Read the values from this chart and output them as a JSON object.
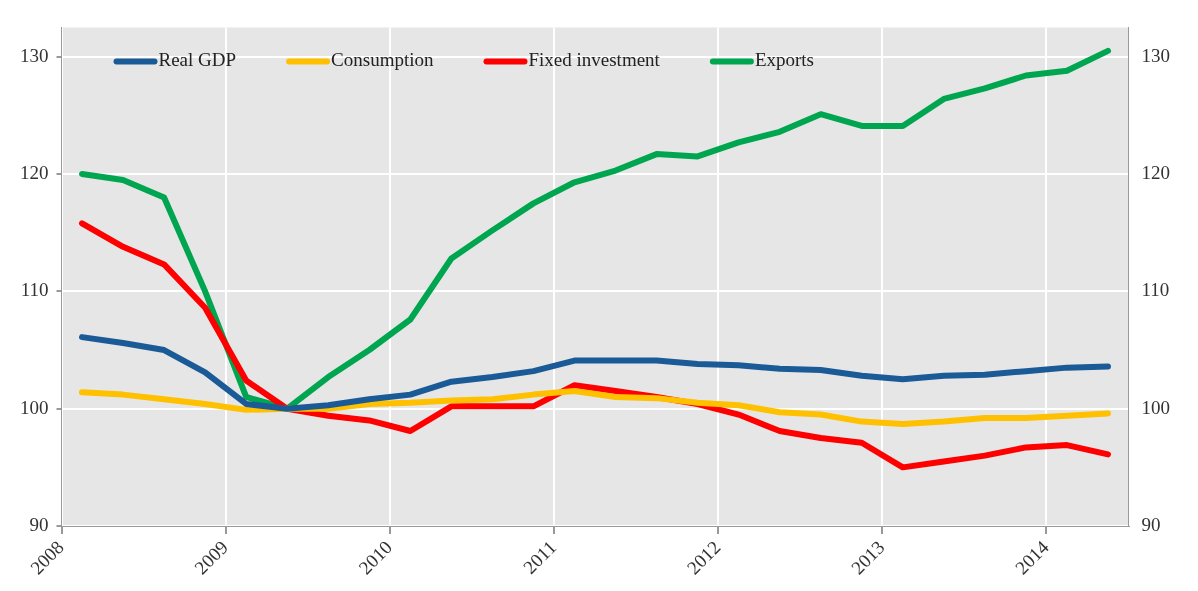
{
  "chart_data": {
    "type": "line",
    "x": [
      2008.125,
      2008.375,
      2008.625,
      2008.875,
      2009.125,
      2009.375,
      2009.625,
      2009.875,
      2010.125,
      2010.375,
      2010.625,
      2010.875,
      2011.125,
      2011.375,
      2011.625,
      2011.875,
      2012.125,
      2012.375,
      2012.625,
      2012.875,
      2013.125,
      2013.375,
      2013.625,
      2013.875,
      2014.125,
      2014.375
    ],
    "series": [
      {
        "name": "Real GDP",
        "color": "#1a5a96",
        "values": [
          106.1,
          105.6,
          105.0,
          103.1,
          100.4,
          100.0,
          100.3,
          100.8,
          101.2,
          102.3,
          102.7,
          103.2,
          104.1,
          104.1,
          104.1,
          103.8,
          103.7,
          103.4,
          103.3,
          102.8,
          102.5,
          102.8,
          102.9,
          103.2,
          103.5,
          103.6
        ]
      },
      {
        "name": "Consumption",
        "color": "#ffc000",
        "values": [
          101.4,
          101.2,
          100.8,
          100.4,
          99.9,
          100.0,
          100.0,
          100.4,
          100.5,
          100.7,
          100.8,
          101.2,
          101.5,
          101.0,
          100.9,
          100.5,
          100.3,
          99.7,
          99.5,
          98.9,
          98.7,
          98.9,
          99.2,
          99.2,
          99.4,
          99.6
        ]
      },
      {
        "name": "Fixed investment",
        "color": "#ff0000",
        "values": [
          115.8,
          113.8,
          112.3,
          108.6,
          102.4,
          100.0,
          99.4,
          99.0,
          98.1,
          100.2,
          100.2,
          100.2,
          102.0,
          101.5,
          101.0,
          100.4,
          99.5,
          98.1,
          97.5,
          97.1,
          95.0,
          95.5,
          96.0,
          96.7,
          96.9,
          96.1
        ]
      },
      {
        "name": "Exports",
        "color": "#00a550",
        "values": [
          120.0,
          119.5,
          118.0,
          110.0,
          101.0,
          100.0,
          102.7,
          105.0,
          107.6,
          112.8,
          115.2,
          117.5,
          119.3,
          120.3,
          121.7,
          121.5,
          122.7,
          123.6,
          125.1,
          124.1,
          124.1,
          126.4,
          127.3,
          128.4,
          128.8,
          130.5
        ]
      }
    ],
    "xlim": [
      2008,
      2014.5
    ],
    "xticks": [
      2008,
      2009,
      2010,
      2011,
      2012,
      2013,
      2014
    ],
    "ylim": [
      90,
      132.5
    ],
    "yticks": [
      90,
      100,
      110,
      120,
      130
    ],
    "y2lim": [
      90,
      132.5
    ],
    "y2ticks": [
      90,
      100,
      110,
      120,
      130
    ],
    "grid": true,
    "legend": "top left",
    "marker": "none",
    "line_style": "solid"
  }
}
